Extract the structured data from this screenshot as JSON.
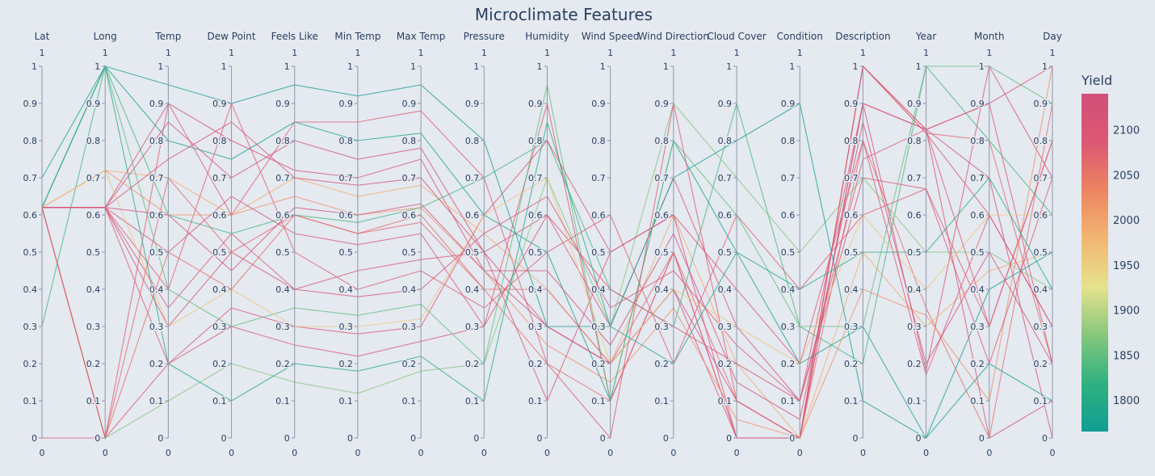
{
  "chart_data": {
    "type": "parallel_coordinates",
    "title": "Microclimate Features",
    "dimensions": [
      "Lat",
      "Long",
      "Temp",
      "Dew Point",
      "Feels Like",
      "Min Temp",
      "Max Temp",
      "Pressure",
      "Humidity",
      "Wind Speed",
      "Wind Direction",
      "Cloud Cover",
      "Condition",
      "Description",
      "Year",
      "Month",
      "Day"
    ],
    "range": [
      0,
      1
    ],
    "range_top_label": "1",
    "range_bottom_label": "0",
    "tick_values": [
      "0",
      "0.1",
      "0.2",
      "0.3",
      "0.4",
      "0.5",
      "0.6",
      "0.7",
      "0.8",
      "0.9",
      "1"
    ],
    "color_scale": {
      "title": "Yield",
      "range": [
        1765,
        2140
      ],
      "tick_labels": [
        "1800",
        "1850",
        "1900",
        "1950",
        "2000",
        "2050",
        "2100"
      ],
      "tick_values": [
        1800,
        1850,
        1900,
        1950,
        2000,
        2050,
        2100
      ],
      "colors": [
        "#119d94",
        "#2fb17f",
        "#86c77d",
        "#e5e28c",
        "#f2b671",
        "#ec8461",
        "#dc5874",
        "#d14f79"
      ]
    },
    "lines": [
      [
        0.62,
        0.62,
        0.9,
        0.8,
        0.72,
        0.7,
        0.75,
        0.45,
        0.3,
        0.2,
        0.4,
        0.1,
        0.0,
        1.0,
        0.82,
        0.6,
        0.3,
        2120
      ],
      [
        0.62,
        0.62,
        0.3,
        0.5,
        0.4,
        0.45,
        0.48,
        0.5,
        0.6,
        0.3,
        0.7,
        0.3,
        0.1,
        0.9,
        0.18,
        1.0,
        0.7,
        2110
      ],
      [
        0.62,
        0.0,
        0.5,
        0.4,
        0.6,
        0.55,
        0.6,
        0.4,
        0.2,
        0.1,
        0.5,
        0.0,
        0.0,
        0.8,
        0.35,
        0.0,
        0.9,
        2060
      ],
      [
        0.62,
        0.72,
        0.7,
        0.6,
        0.7,
        0.65,
        0.68,
        0.55,
        0.4,
        0.2,
        0.6,
        0.2,
        0.0,
        0.5,
        0.3,
        0.45,
        0.5,
        1990
      ],
      [
        0.7,
        1.0,
        0.8,
        0.75,
        0.85,
        0.8,
        0.82,
        0.6,
        0.5,
        0.1,
        0.8,
        0.5,
        0.2,
        0.3,
        0.0,
        0.2,
        0.1,
        1780
      ],
      [
        0.3,
        1.0,
        0.6,
        0.55,
        0.6,
        0.58,
        0.62,
        0.7,
        0.8,
        0.4,
        0.3,
        0.9,
        0.3,
        0.2,
        1.0,
        0.8,
        0.6,
        1830
      ],
      [
        0.0,
        0.0,
        0.2,
        0.3,
        0.25,
        0.22,
        0.26,
        0.3,
        0.9,
        0.1,
        0.5,
        0.0,
        0.0,
        1.0,
        0.83,
        0.9,
        0.2,
        2100
      ],
      [
        0.62,
        0.62,
        0.4,
        0.9,
        0.5,
        0.4,
        0.45,
        0.35,
        0.5,
        0.6,
        0.2,
        0.6,
        0.4,
        0.6,
        0.67,
        0.3,
        0.8,
        2080
      ],
      [
        0.62,
        0.0,
        0.1,
        0.2,
        0.15,
        0.12,
        0.18,
        0.2,
        0.7,
        0.3,
        0.9,
        0.7,
        0.5,
        0.7,
        0.5,
        0.5,
        0.4,
        1870
      ],
      [
        0.62,
        0.62,
        0.85,
        0.7,
        0.8,
        0.75,
        0.78,
        0.5,
        0.3,
        0.2,
        0.4,
        0.0,
        0.0,
        0.9,
        0.83,
        0.7,
        0.0,
        2130
      ],
      [
        0.62,
        0.72,
        0.6,
        0.6,
        0.65,
        0.6,
        0.62,
        0.45,
        0.25,
        0.15,
        0.35,
        0.05,
        0.0,
        0.4,
        0.33,
        0.1,
        1.0,
        2020
      ],
      [
        0.62,
        0.62,
        0.2,
        0.35,
        0.3,
        0.28,
        0.3,
        0.6,
        0.8,
        0.5,
        0.6,
        0.4,
        0.2,
        0.8,
        0.17,
        0.6,
        0.3,
        2090
      ],
      [
        0.62,
        1.0,
        0.95,
        0.9,
        0.95,
        0.92,
        0.95,
        0.8,
        0.3,
        0.3,
        0.7,
        0.8,
        0.9,
        0.1,
        0.0,
        0.4,
        0.5,
        1770
      ],
      [
        0.62,
        0.0,
        0.7,
        0.5,
        0.6,
        0.55,
        0.58,
        0.4,
        0.4,
        0.2,
        0.5,
        0.1,
        0.0,
        1.0,
        0.82,
        0.8,
        0.2,
        2070
      ],
      [
        0.62,
        0.62,
        0.5,
        0.65,
        0.55,
        0.52,
        0.55,
        0.3,
        0.6,
        0.4,
        0.3,
        0.2,
        0.1,
        0.7,
        0.67,
        0.2,
        0.7,
        2105
      ],
      [
        0.62,
        1.0,
        0.4,
        0.3,
        0.35,
        0.33,
        0.36,
        0.2,
        0.95,
        0.1,
        0.8,
        0.6,
        0.3,
        0.3,
        1.0,
        1.0,
        0.9,
        1850
      ],
      [
        0.62,
        0.62,
        0.75,
        0.85,
        0.7,
        0.68,
        0.7,
        0.5,
        0.1,
        0.5,
        0.6,
        0.0,
        0.0,
        0.9,
        0.83,
        0.0,
        0.1,
        2115
      ],
      [
        0.62,
        0.72,
        0.3,
        0.4,
        0.3,
        0.3,
        0.32,
        0.6,
        0.7,
        0.2,
        0.4,
        0.3,
        0.2,
        0.6,
        0.4,
        0.6,
        0.6,
        1960
      ],
      [
        0.62,
        0.0,
        0.9,
        0.6,
        0.85,
        0.85,
        0.88,
        0.7,
        0.2,
        0.0,
        0.9,
        0.1,
        0.0,
        1.0,
        0.83,
        0.3,
        0.8,
        2085
      ],
      [
        0.62,
        1.0,
        0.2,
        0.1,
        0.2,
        0.18,
        0.22,
        0.1,
        0.85,
        0.3,
        0.2,
        0.5,
        0.4,
        0.5,
        0.5,
        0.7,
        0.4,
        1800
      ],
      [
        0.62,
        0.62,
        0.6,
        0.45,
        0.62,
        0.6,
        0.63,
        0.45,
        0.45,
        0.25,
        0.55,
        0.15,
        0.05,
        0.85,
        0.2,
        0.5,
        0.2,
        2125
      ],
      [
        0.62,
        0.62,
        0.35,
        0.55,
        0.4,
        0.38,
        0.4,
        0.55,
        0.65,
        0.35,
        0.45,
        0.25,
        0.1,
        0.75,
        0.83,
        0.9,
        1.0,
        2100
      ]
    ]
  }
}
